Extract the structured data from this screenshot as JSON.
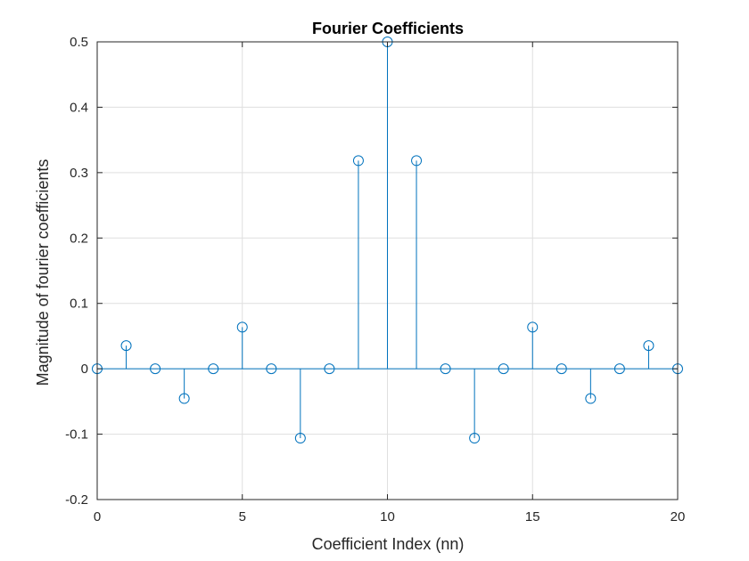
{
  "chart_data": {
    "type": "stem",
    "title": "Fourier Coefficients",
    "xlabel": "Coefficient Index (nn)",
    "ylabel": "Magnitude of fourier coefficients",
    "xlim": [
      0,
      20
    ],
    "ylim": [
      -0.2,
      0.5
    ],
    "xticks": [
      0,
      5,
      10,
      15,
      20
    ],
    "yticks": [
      -0.2,
      -0.1,
      0,
      0.1,
      0.2,
      0.3,
      0.4,
      0.5
    ],
    "xtick_labels": [
      "0",
      "5",
      "10",
      "15",
      "20"
    ],
    "ytick_labels": [
      "-0.2",
      "-0.1",
      "0",
      "0.1",
      "0.2",
      "0.3",
      "0.4",
      "0.5"
    ],
    "grid": true,
    "series": [
      {
        "color": "#0072BD",
        "x": [
          0,
          1,
          2,
          3,
          4,
          5,
          6,
          7,
          8,
          9,
          10,
          11,
          12,
          13,
          14,
          15,
          16,
          17,
          18,
          19,
          20
        ],
        "y": [
          0,
          0.0354,
          0,
          -0.0455,
          0,
          0.0637,
          0,
          -0.1061,
          0,
          0.3183,
          0.5,
          0.3183,
          0,
          -0.1061,
          0,
          0.0637,
          0,
          -0.0455,
          0,
          0.0354,
          0
        ]
      }
    ]
  }
}
